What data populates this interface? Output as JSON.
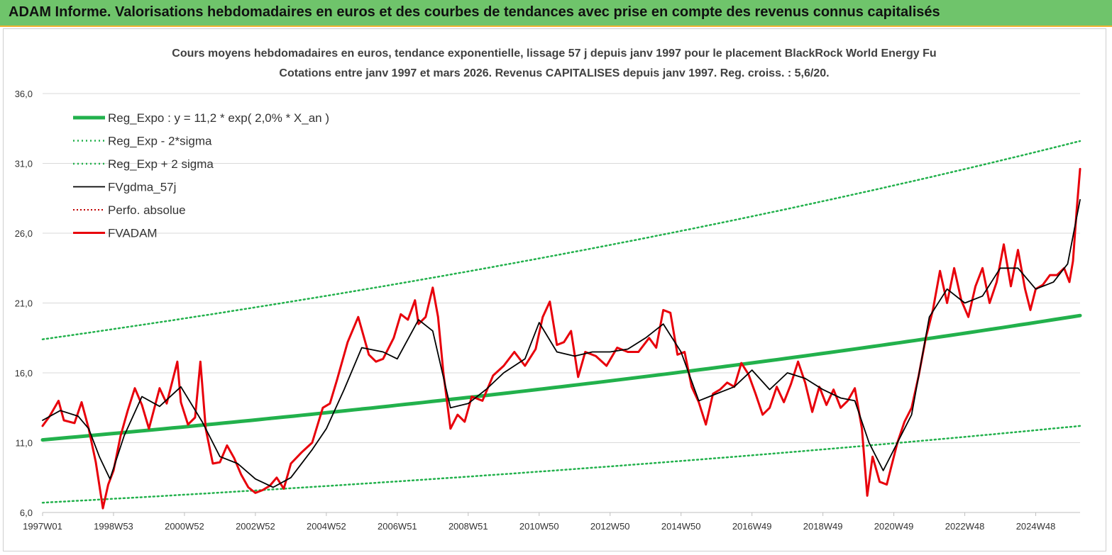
{
  "header": {
    "title": "ADAM Informe. Valorisations hebdomadaires en euros et des courbes de tendances avec prise en compte des revenus connus capitalisés"
  },
  "chart_data": {
    "type": "line",
    "title_line1": "Cours moyens hebdomadaires en euros, tendance exponentielle, lissage 57 j depuis janv 1997  pour le placement BlackRock World Energy Fu",
    "title_line2": "Cotations entre janv 1997 et mars 2026. Revenus  CAPITALISES  depuis janv 1997. Reg. croiss. : 5,6/20.",
    "ylim": [
      6,
      38
    ],
    "y_ticks": [
      "36,0",
      "31,0",
      "26,0",
      "21,0",
      "16,0",
      "11,0",
      "6,0"
    ],
    "y_tick_values": [
      36,
      31,
      26,
      21,
      16,
      11,
      6
    ],
    "x_range": [
      1997.0,
      2026.25
    ],
    "x_tick_labels": [
      "1997W01",
      "1998W53",
      "2000W52",
      "2002W52",
      "2004W52",
      "2006W51",
      "2008W51",
      "2010W50",
      "2012W50",
      "2014W50",
      "2016W49",
      "2018W49",
      "2020W49",
      "2022W48",
      "2024W48"
    ],
    "x_tick_years": [
      1997.0,
      1999.0,
      2001.0,
      2003.0,
      2005.0,
      2007.0,
      2009.0,
      2011.0,
      2013.0,
      2015.0,
      2017.0,
      2019.0,
      2021.0,
      2023.0,
      2025.0
    ],
    "grid": "horizontal",
    "legend_position": "top-left",
    "colors": {
      "reg_expo": "#22b14c",
      "fvadam": "#e8000b",
      "fvgdma": "#000000",
      "perfo": "#c00000"
    },
    "series": [
      {
        "name": "Reg_Expo : y = 11,2 * exp( 2,0% *  X_an )",
        "style": "thick-green",
        "a": 11.2,
        "rate": 0.02,
        "x": [
          1997.0,
          2026.25
        ],
        "values": [
          11.2,
          20.0
        ]
      },
      {
        "name": "Reg_Exp - 2*sigma",
        "style": "dotted-green",
        "x": [
          1997.0,
          2026.25
        ],
        "values": [
          6.7,
          12.2
        ]
      },
      {
        "name": "Reg_Exp + 2 sigma",
        "style": "dotted-green",
        "x": [
          1997.0,
          2026.25
        ],
        "values": [
          18.4,
          32.6
        ]
      },
      {
        "name": "FVgdma_57j",
        "style": "thin-black",
        "x": [
          1997.0,
          1997.5,
          1998.0,
          1998.3,
          1998.6,
          1998.9,
          1999.3,
          1999.8,
          2000.3,
          2000.9,
          2001.5,
          2002.0,
          2002.5,
          2003.0,
          2003.5,
          2004.0,
          2004.6,
          2005.0,
          2005.5,
          2006.0,
          2006.6,
          2007.0,
          2007.6,
          2008.0,
          2008.5,
          2009.0,
          2009.5,
          2010.0,
          2010.6,
          2011.0,
          2011.5,
          2012.0,
          2012.5,
          2013.0,
          2013.5,
          2014.0,
          2014.5,
          2015.0,
          2015.5,
          2016.0,
          2016.5,
          2017.0,
          2017.5,
          2018.0,
          2018.5,
          2019.0,
          2019.5,
          2019.9,
          2020.3,
          2020.7,
          2021.0,
          2021.5,
          2022.0,
          2022.5,
          2023.0,
          2023.5,
          2024.0,
          2024.5,
          2025.0,
          2025.5,
          2025.9,
          2026.25
        ],
        "values": [
          12.6,
          13.3,
          12.9,
          12.0,
          10.0,
          8.4,
          11.5,
          14.3,
          13.6,
          15.0,
          12.5,
          10.0,
          9.5,
          8.4,
          7.8,
          8.5,
          10.5,
          12.0,
          14.8,
          17.8,
          17.5,
          17.0,
          19.8,
          19.0,
          13.5,
          13.8,
          14.8,
          16.0,
          17.0,
          19.6,
          17.5,
          17.2,
          17.5,
          17.5,
          17.7,
          18.5,
          19.5,
          17.5,
          14.0,
          14.5,
          15.0,
          16.2,
          14.8,
          16.0,
          15.6,
          14.8,
          14.2,
          14.0,
          11.0,
          9.0,
          10.5,
          13.0,
          20.0,
          22.0,
          21.0,
          21.5,
          23.5,
          23.5,
          22.0,
          22.5,
          23.8,
          28.4
        ]
      },
      {
        "name": "Perfo. absolue",
        "style": "dotted-red",
        "x": [],
        "values": []
      },
      {
        "name": "FVADAM",
        "style": "thick-red",
        "x": [
          1997.0,
          1997.2,
          1997.45,
          1997.6,
          1997.9,
          1998.1,
          1998.3,
          1998.5,
          1998.7,
          1998.85,
          1999.0,
          1999.2,
          1999.4,
          1999.6,
          1999.8,
          2000.0,
          2000.3,
          2000.5,
          2000.8,
          2000.9,
          2001.1,
          2001.3,
          2001.45,
          2001.6,
          2001.8,
          2002.0,
          2002.2,
          2002.4,
          2002.6,
          2002.8,
          2003.0,
          2003.2,
          2003.4,
          2003.6,
          2003.8,
          2004.0,
          2004.3,
          2004.6,
          2004.9,
          2005.1,
          2005.3,
          2005.6,
          2005.9,
          2006.2,
          2006.4,
          2006.6,
          2006.9,
          2007.1,
          2007.3,
          2007.5,
          2007.6,
          2007.8,
          2008.0,
          2008.15,
          2008.3,
          2008.5,
          2008.7,
          2008.9,
          2009.1,
          2009.4,
          2009.7,
          2010.0,
          2010.3,
          2010.6,
          2010.9,
          2011.1,
          2011.3,
          2011.5,
          2011.7,
          2011.9,
          2012.1,
          2012.3,
          2012.6,
          2012.9,
          2013.2,
          2013.5,
          2013.8,
          2014.1,
          2014.3,
          2014.5,
          2014.7,
          2014.9,
          2015.1,
          2015.3,
          2015.5,
          2015.7,
          2015.9,
          2016.1,
          2016.3,
          2016.5,
          2016.7,
          2016.9,
          2017.1,
          2017.3,
          2017.5,
          2017.7,
          2017.9,
          2018.1,
          2018.3,
          2018.5,
          2018.7,
          2018.9,
          2019.1,
          2019.3,
          2019.5,
          2019.7,
          2019.9,
          2020.1,
          2020.25,
          2020.4,
          2020.6,
          2020.8,
          2020.95,
          2021.1,
          2021.3,
          2021.5,
          2021.7,
          2021.9,
          2022.1,
          2022.3,
          2022.5,
          2022.7,
          2022.9,
          2023.1,
          2023.3,
          2023.5,
          2023.7,
          2023.9,
          2024.1,
          2024.3,
          2024.5,
          2024.7,
          2024.85,
          2025.0,
          2025.2,
          2025.4,
          2025.6,
          2025.8,
          2025.95,
          2026.05,
          2026.15,
          2026.25
        ],
        "values": [
          12.2,
          12.9,
          14.0,
          12.6,
          12.4,
          13.9,
          12.0,
          9.6,
          6.3,
          8.0,
          9.0,
          11.5,
          13.3,
          14.9,
          13.7,
          12.0,
          14.9,
          13.8,
          16.8,
          13.9,
          12.3,
          12.8,
          16.8,
          12.0,
          9.5,
          9.6,
          10.8,
          9.9,
          8.7,
          7.8,
          7.4,
          7.6,
          7.9,
          8.5,
          7.7,
          9.5,
          10.3,
          11.0,
          13.5,
          13.8,
          15.5,
          18.2,
          20.0,
          17.3,
          16.8,
          17.0,
          18.5,
          20.2,
          19.8,
          21.2,
          19.5,
          20.0,
          22.1,
          20.0,
          16.0,
          12.0,
          13.0,
          12.5,
          14.3,
          14.0,
          15.8,
          16.5,
          17.5,
          16.5,
          17.7,
          20.0,
          21.1,
          18.0,
          18.2,
          19.0,
          15.7,
          17.5,
          17.2,
          16.5,
          17.8,
          17.5,
          17.5,
          18.5,
          17.8,
          20.5,
          20.3,
          17.3,
          17.5,
          15.0,
          13.9,
          12.3,
          14.5,
          14.8,
          15.3,
          15.0,
          16.7,
          15.9,
          14.5,
          13.0,
          13.5,
          15.0,
          13.9,
          15.2,
          16.8,
          15.3,
          13.2,
          15.0,
          13.7,
          14.8,
          13.5,
          14.0,
          14.9,
          12.0,
          7.2,
          10.0,
          8.2,
          8.0,
          9.5,
          11.0,
          12.5,
          13.5,
          15.8,
          18.5,
          20.5,
          23.3,
          21.0,
          23.5,
          21.2,
          20.0,
          22.2,
          23.5,
          21.0,
          22.5,
          25.2,
          22.2,
          24.8,
          22.0,
          20.5,
          22.0,
          22.3,
          23.0,
          23.0,
          23.5,
          22.5,
          24.0,
          27.5,
          30.6
        ]
      }
    ]
  }
}
